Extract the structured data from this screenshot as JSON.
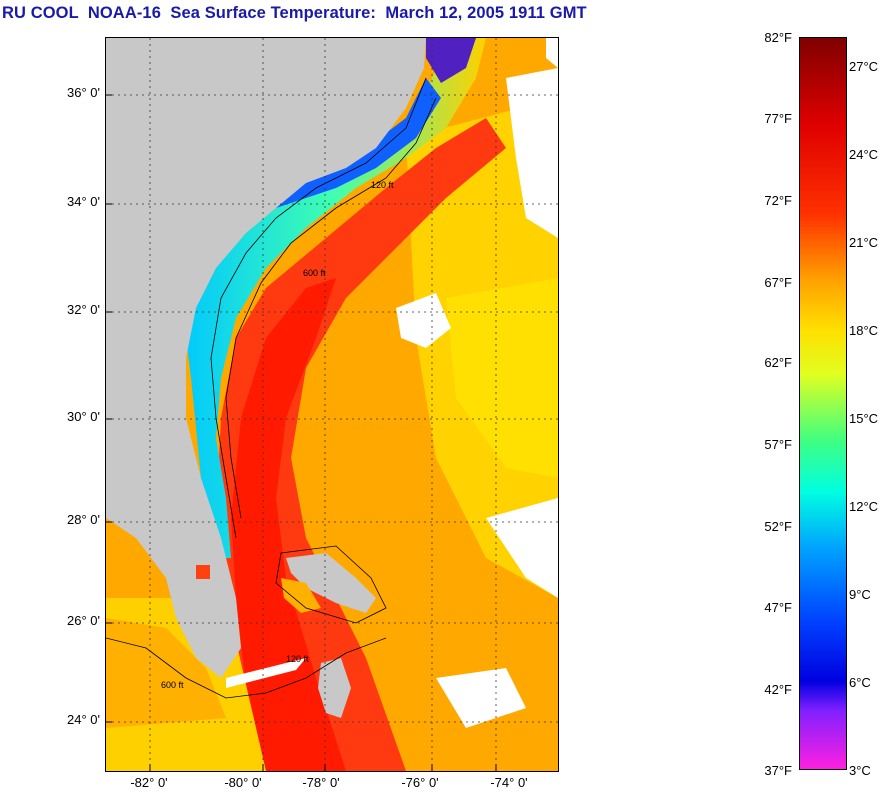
{
  "title": "RU COOL  NOAA-16  Sea Surface Temperature:  March 12, 2005 1911 GMT",
  "map": {
    "latitude_labels": [
      "36° 0'",
      "34° 0'",
      "32° 0'",
      "30° 0'",
      "28° 0'",
      "26° 0'",
      "24° 0'"
    ],
    "longitude_labels": [
      "-82° 0'",
      "-80° 0'",
      "-78° 0'",
      "-76° 0'",
      "-74° 0'"
    ],
    "contour_labels": [
      "120 ft",
      "600 ft"
    ],
    "colors": {
      "land": "#c8c8c8",
      "cloud": "#ffffff",
      "grid": "#333333"
    }
  },
  "colorbar": {
    "fahrenheit_labels": [
      "82°F",
      "77°F",
      "72°F",
      "67°F",
      "62°F",
      "57°F",
      "52°F",
      "47°F",
      "42°F",
      "37°F"
    ],
    "celsius_labels": [
      "27°C",
      "24°C",
      "21°C",
      "18°C",
      "15°C",
      "12°C",
      "9°C",
      "6°C",
      "3°C"
    ]
  }
}
